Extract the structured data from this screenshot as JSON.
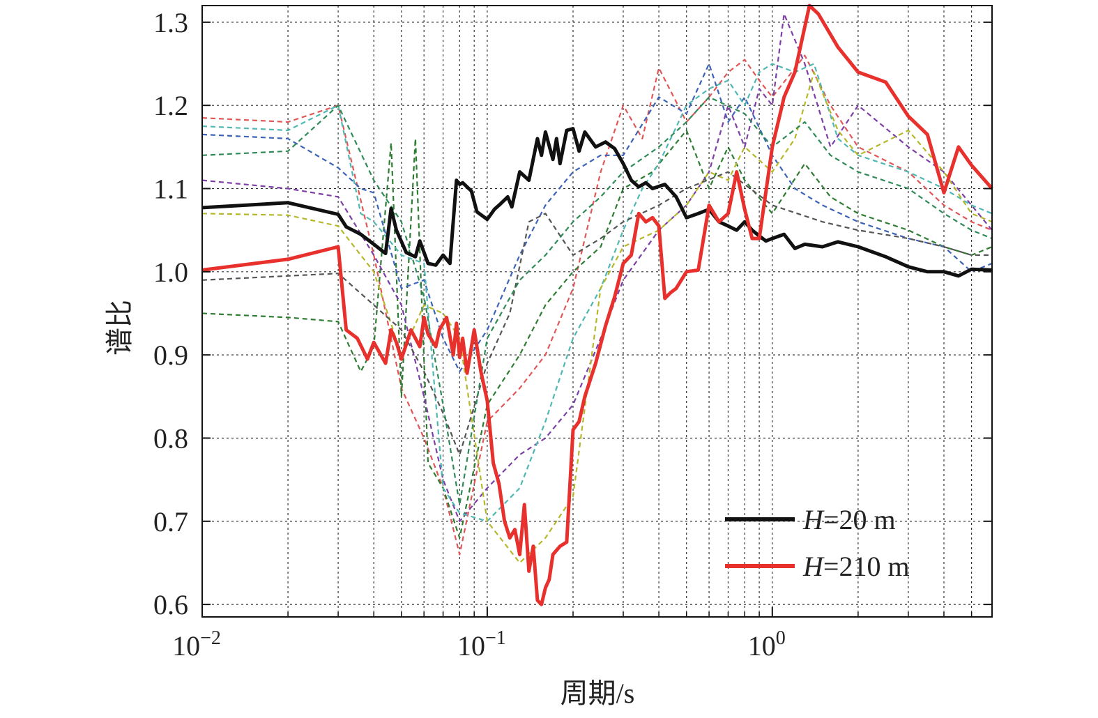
{
  "chart_data": {
    "type": "line",
    "xscale": "log",
    "xlabel": "周期/s",
    "ylabel": "谱比",
    "xlim": [
      0.01,
      5.9
    ],
    "ylim": [
      0.585,
      1.32
    ],
    "xticks": [
      {
        "value": 0.01,
        "base": "10",
        "exp": "−2"
      },
      {
        "value": 0.1,
        "base": "10",
        "exp": "−1"
      },
      {
        "value": 1,
        "base": "10",
        "exp": "0"
      }
    ],
    "yticks": [
      {
        "value": 0.6,
        "label": "0.6"
      },
      {
        "value": 0.7,
        "label": "0.7"
      },
      {
        "value": 0.8,
        "label": "0.8"
      },
      {
        "value": 0.9,
        "label": "0.9"
      },
      {
        "value": 1.0,
        "label": "1.0"
      },
      {
        "value": 1.1,
        "label": "1.1"
      },
      {
        "value": 1.2,
        "label": "1.2"
      },
      {
        "value": 1.3,
        "label": "1.3"
      }
    ],
    "grid": true,
    "legend_position": "bottom-right",
    "legend": [
      {
        "prefix": "H",
        "suffix": "=20 m",
        "color": "#111111"
      },
      {
        "prefix": "H",
        "suffix": "=210 m",
        "color": "#e8302c"
      }
    ],
    "series": [
      {
        "color": "#111111",
        "style": "solid",
        "x": [
          0.01,
          0.02,
          0.03,
          0.032,
          0.036,
          0.04,
          0.044,
          0.046,
          0.048,
          0.052,
          0.056,
          0.058,
          0.062,
          0.066,
          0.07,
          0.074,
          0.078,
          0.08,
          0.082,
          0.088,
          0.092,
          0.1,
          0.106,
          0.11,
          0.118,
          0.122,
          0.13,
          0.14,
          0.15,
          0.155,
          0.16,
          0.17,
          0.175,
          0.18,
          0.19,
          0.2,
          0.21,
          0.22,
          0.24,
          0.26,
          0.28,
          0.3,
          0.32,
          0.34,
          0.36,
          0.38,
          0.42,
          0.46,
          0.5,
          0.55,
          0.6,
          0.65,
          0.7,
          0.75,
          0.8,
          0.85,
          0.9,
          0.95,
          1.0,
          1.1,
          1.2,
          1.3,
          1.5,
          1.7,
          2.0,
          2.5,
          3.0,
          3.5,
          4.0,
          4.5,
          5.0,
          5.9
        ],
        "y": [
          1.077,
          1.083,
          1.069,
          1.054,
          1.045,
          1.033,
          1.022,
          1.076,
          1.05,
          1.023,
          1.018,
          1.037,
          1.01,
          1.008,
          1.02,
          1.01,
          1.11,
          1.105,
          1.107,
          1.097,
          1.072,
          1.063,
          1.075,
          1.08,
          1.09,
          1.078,
          1.12,
          1.11,
          1.16,
          1.14,
          1.168,
          1.135,
          1.16,
          1.13,
          1.17,
          1.172,
          1.145,
          1.168,
          1.15,
          1.156,
          1.148,
          1.13,
          1.11,
          1.102,
          1.107,
          1.1,
          1.105,
          1.09,
          1.065,
          1.07,
          1.075,
          1.06,
          1.055,
          1.05,
          1.06,
          1.05,
          1.043,
          1.037,
          1.04,
          1.045,
          1.028,
          1.033,
          1.03,
          1.036,
          1.03,
          1.018,
          1.006,
          1.0,
          1.0,
          0.995,
          1.003,
          1.002
        ]
      },
      {
        "color": "#e8302c",
        "style": "solid",
        "x": [
          0.01,
          0.02,
          0.03,
          0.032,
          0.035,
          0.038,
          0.04,
          0.044,
          0.046,
          0.048,
          0.05,
          0.054,
          0.058,
          0.06,
          0.062,
          0.066,
          0.068,
          0.072,
          0.076,
          0.078,
          0.08,
          0.082,
          0.085,
          0.09,
          0.095,
          0.1,
          0.105,
          0.11,
          0.115,
          0.12,
          0.125,
          0.13,
          0.135,
          0.14,
          0.145,
          0.15,
          0.155,
          0.16,
          0.165,
          0.17,
          0.18,
          0.19,
          0.2,
          0.21,
          0.22,
          0.24,
          0.26,
          0.28,
          0.3,
          0.32,
          0.34,
          0.36,
          0.38,
          0.4,
          0.42,
          0.44,
          0.46,
          0.5,
          0.55,
          0.6,
          0.65,
          0.7,
          0.75,
          0.8,
          0.85,
          0.9,
          1.0,
          1.1,
          1.2,
          1.35,
          1.45,
          1.7,
          2.0,
          2.5,
          3.0,
          3.5,
          4.0,
          4.5,
          5.0,
          5.9
        ],
        "y": [
          1.002,
          1.015,
          1.03,
          0.93,
          0.92,
          0.895,
          0.915,
          0.89,
          0.93,
          0.915,
          0.895,
          0.93,
          0.91,
          0.945,
          0.925,
          0.91,
          0.93,
          0.945,
          0.9,
          0.938,
          0.897,
          0.92,
          0.878,
          0.93,
          0.88,
          0.845,
          0.77,
          0.745,
          0.7,
          0.68,
          0.69,
          0.66,
          0.72,
          0.64,
          0.67,
          0.605,
          0.6,
          0.62,
          0.63,
          0.66,
          0.67,
          0.675,
          0.81,
          0.82,
          0.85,
          0.89,
          0.935,
          0.97,
          1.01,
          1.02,
          1.07,
          1.06,
          1.065,
          1.055,
          0.968,
          0.975,
          0.98,
          1.0,
          1.002,
          1.08,
          1.06,
          1.07,
          1.12,
          1.075,
          1.04,
          1.04,
          1.15,
          1.21,
          1.24,
          1.32,
          1.31,
          1.27,
          1.24,
          1.228,
          1.187,
          1.165,
          1.095,
          1.15,
          1.128,
          1.1
        ]
      },
      {
        "color": "#e15757",
        "style": "dashed",
        "x": [
          0.01,
          0.02,
          0.03,
          0.04,
          0.05,
          0.06,
          0.07,
          0.08,
          0.1,
          0.13,
          0.16,
          0.2,
          0.25,
          0.3,
          0.35,
          0.4,
          0.5,
          0.6,
          0.7,
          0.8,
          0.9,
          1.0,
          1.3,
          1.6,
          2.0,
          3.0,
          4.0,
          5.0,
          5.9
        ],
        "y": [
          1.185,
          1.18,
          1.2,
          1.02,
          0.86,
          0.8,
          0.74,
          0.66,
          0.82,
          0.86,
          0.9,
          0.98,
          1.12,
          1.2,
          1.16,
          1.245,
          1.18,
          1.21,
          1.24,
          1.255,
          1.23,
          1.21,
          1.26,
          1.2,
          1.15,
          1.12,
          1.08,
          1.06,
          1.05
        ]
      },
      {
        "color": "#2e7d32",
        "style": "dashed",
        "x": [
          0.01,
          0.02,
          0.03,
          0.036,
          0.04,
          0.046,
          0.05,
          0.056,
          0.062,
          0.07,
          0.08,
          0.1,
          0.13,
          0.16,
          0.2,
          0.25,
          0.3,
          0.38,
          0.5,
          0.6,
          0.7,
          0.8,
          1.0,
          1.3,
          1.6,
          2.0,
          3.0,
          4.0,
          5.0,
          5.9
        ],
        "y": [
          0.95,
          0.945,
          0.94,
          0.88,
          0.91,
          1.155,
          0.85,
          1.16,
          0.77,
          0.74,
          0.68,
          0.84,
          0.9,
          0.96,
          1.0,
          1.03,
          1.1,
          1.12,
          1.17,
          1.1,
          1.15,
          1.11,
          1.07,
          1.13,
          1.09,
          1.07,
          1.05,
          1.03,
          1.02,
          1.03
        ]
      },
      {
        "color": "#3d63b8",
        "style": "dashed",
        "x": [
          0.01,
          0.02,
          0.03,
          0.036,
          0.04,
          0.05,
          0.06,
          0.07,
          0.08,
          0.1,
          0.13,
          0.16,
          0.2,
          0.25,
          0.3,
          0.4,
          0.5,
          0.6,
          0.7,
          0.8,
          1.0,
          1.2,
          1.5,
          2.0,
          3.0,
          4.0,
          5.0,
          5.9
        ],
        "y": [
          1.165,
          1.16,
          1.125,
          1.1,
          1.095,
          0.98,
          0.99,
          0.92,
          0.88,
          0.93,
          1.02,
          1.08,
          1.12,
          1.14,
          1.14,
          1.21,
          1.19,
          1.25,
          1.18,
          1.21,
          1.14,
          1.1,
          1.08,
          1.06,
          1.04,
          1.03,
          1.0,
          1.01
        ]
      },
      {
        "color": "#7e3fa6",
        "style": "dashed",
        "x": [
          0.01,
          0.02,
          0.03,
          0.04,
          0.05,
          0.06,
          0.07,
          0.08,
          0.1,
          0.13,
          0.16,
          0.2,
          0.25,
          0.3,
          0.4,
          0.5,
          0.6,
          0.7,
          0.8,
          0.9,
          1.0,
          1.1,
          1.3,
          1.6,
          2.0,
          3.0,
          4.0,
          5.0,
          5.9
        ],
        "y": [
          1.11,
          1.1,
          1.09,
          1.02,
          0.96,
          0.85,
          0.75,
          0.7,
          0.74,
          0.78,
          0.8,
          0.84,
          0.92,
          0.99,
          1.05,
          1.08,
          1.12,
          1.2,
          1.15,
          1.22,
          1.2,
          1.31,
          1.25,
          1.15,
          1.2,
          1.15,
          1.12,
          1.08,
          1.05
        ]
      },
      {
        "color": "#4fb8b3",
        "style": "dashed",
        "x": [
          0.01,
          0.02,
          0.03,
          0.036,
          0.04,
          0.05,
          0.06,
          0.07,
          0.08,
          0.1,
          0.13,
          0.16,
          0.2,
          0.25,
          0.3,
          0.35,
          0.4,
          0.5,
          0.6,
          0.7,
          0.8,
          0.9,
          1.0,
          1.2,
          1.4,
          1.7,
          2.0,
          3.0,
          4.0,
          5.0,
          5.9
        ],
        "y": [
          1.175,
          1.17,
          1.2,
          1.07,
          1.06,
          1.02,
          1.01,
          0.74,
          0.71,
          0.7,
          0.74,
          0.82,
          0.92,
          0.98,
          1.05,
          1.1,
          1.13,
          1.2,
          1.22,
          1.23,
          1.2,
          1.24,
          1.25,
          1.24,
          1.25,
          1.16,
          1.14,
          1.12,
          1.1,
          1.08,
          1.07
        ]
      },
      {
        "color": "#b5b82a",
        "style": "dashed",
        "x": [
          0.01,
          0.02,
          0.03,
          0.036,
          0.04,
          0.05,
          0.06,
          0.07,
          0.08,
          0.1,
          0.13,
          0.16,
          0.2,
          0.25,
          0.3,
          0.4,
          0.5,
          0.6,
          0.7,
          0.8,
          1.0,
          1.2,
          1.4,
          1.7,
          2.0,
          3.0,
          4.0,
          5.0,
          5.9
        ],
        "y": [
          1.07,
          1.068,
          1.055,
          1.02,
          1.0,
          0.9,
          0.96,
          0.95,
          0.92,
          0.7,
          0.65,
          0.68,
          0.73,
          0.98,
          1.03,
          1.05,
          1.08,
          1.12,
          1.11,
          1.15,
          1.12,
          1.16,
          1.24,
          1.17,
          1.14,
          1.17,
          1.12,
          1.07,
          1.06
        ]
      },
      {
        "color": "#555555",
        "style": "dashed",
        "x": [
          0.01,
          0.02,
          0.03,
          0.04,
          0.05,
          0.06,
          0.07,
          0.08,
          0.1,
          0.12,
          0.14,
          0.16,
          0.2,
          0.25,
          0.3,
          0.4,
          0.5,
          0.7,
          1.0,
          1.5,
          2.0,
          3.0,
          4.0,
          5.0,
          5.9
        ],
        "y": [
          0.99,
          0.995,
          0.998,
          0.96,
          0.93,
          0.88,
          0.83,
          0.78,
          0.89,
          0.95,
          1.06,
          1.07,
          1.02,
          1.04,
          1.06,
          1.08,
          1.1,
          1.12,
          1.08,
          1.06,
          1.05,
          1.04,
          1.03,
          1.02,
          1.02
        ]
      },
      {
        "color": "#2e8b57",
        "style": "dashed",
        "x": [
          0.01,
          0.02,
          0.03,
          0.04,
          0.05,
          0.06,
          0.07,
          0.08,
          0.1,
          0.13,
          0.16,
          0.2,
          0.25,
          0.3,
          0.4,
          0.5,
          0.6,
          0.8,
          1.0,
          1.3,
          1.6,
          2.0,
          3.0,
          4.0,
          5.0,
          5.9
        ],
        "y": [
          1.14,
          1.145,
          1.2,
          1.11,
          1.06,
          0.97,
          0.84,
          0.72,
          0.92,
          0.99,
          1.02,
          1.06,
          1.09,
          1.12,
          1.15,
          1.18,
          1.21,
          1.19,
          1.15,
          1.18,
          1.14,
          1.12,
          1.1,
          1.07,
          1.05,
          1.04
        ]
      }
    ]
  }
}
